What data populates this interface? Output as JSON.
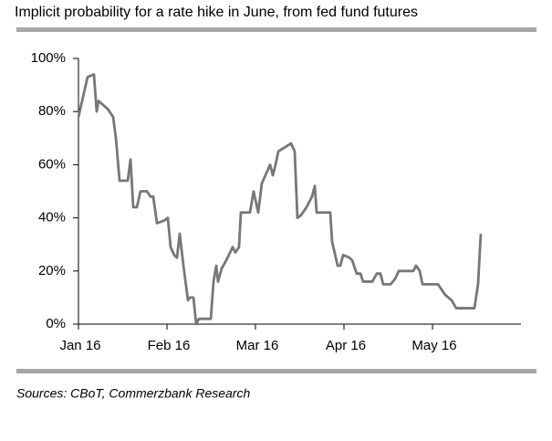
{
  "chart_data": {
    "type": "line",
    "title": "Implicit probability for a rate hike in June, from fed fund futures",
    "source": "Sources: CBoT, Commerzbank Research",
    "color": "#777777",
    "x": [
      0,
      0.103,
      0.175,
      0.206,
      0.227,
      0.33,
      0.392,
      0.423,
      0.464,
      0.557,
      0.588,
      0.619,
      0.66,
      0.701,
      0.773,
      0.814,
      0.845,
      0.887,
      0.969,
      1.01,
      1.041,
      1.082,
      1.113,
      1.144,
      1.186,
      1.237,
      1.258,
      1.299,
      1.33,
      1.361,
      1.495,
      1.526,
      1.557,
      1.577,
      1.619,
      1.67,
      1.742,
      1.773,
      1.814,
      1.835,
      1.938,
      1.979,
      2.031,
      2.072,
      2.165,
      2.196,
      2.227,
      2.258,
      2.402,
      2.443,
      2.474,
      2.515,
      2.577,
      2.639,
      2.67,
      2.691,
      2.845,
      2.866,
      2.928,
      2.959,
      2.99,
      3.062,
      3.093,
      3.144,
      3.186,
      3.216,
      3.32,
      3.371,
      3.412,
      3.443,
      3.526,
      3.577,
      3.619,
      3.753,
      3.784,
      3.814,
      3.856,
      3.887,
      4.062,
      4.103,
      4.144,
      4.216,
      4.268,
      4.474,
      4.515,
      4.546
    ],
    "values": [
      78,
      93,
      94,
      80,
      84,
      81,
      78,
      70,
      54,
      54,
      62,
      44,
      44,
      50,
      50,
      48,
      48,
      38,
      39,
      40,
      29,
      26,
      25,
      34,
      22,
      9,
      10,
      10,
      0,
      2,
      2,
      16,
      22,
      16,
      21,
      24,
      29,
      27,
      29,
      42,
      42,
      50,
      42,
      53,
      60,
      56,
      60,
      65,
      68,
      65,
      40,
      41,
      44,
      48,
      52,
      42,
      42,
      31,
      22,
      22,
      26,
      25,
      24,
      19,
      19,
      16,
      16,
      19,
      19,
      15,
      15,
      17,
      20,
      20,
      20,
      22,
      20,
      15,
      15,
      13,
      11,
      9,
      6,
      6,
      15,
      34
    ],
    "xlim": [
      0,
      5
    ],
    "xticks": [
      {
        "value": 0,
        "label": "Jan 16"
      },
      {
        "value": 1,
        "label": "Feb 16"
      },
      {
        "value": 2,
        "label": "Mar 16"
      },
      {
        "value": 3,
        "label": "Apr 16"
      },
      {
        "value": 4,
        "label": "May 16"
      }
    ],
    "ylim": [
      0,
      100
    ],
    "yticks": [
      {
        "value": 0,
        "label": "0%"
      },
      {
        "value": 20,
        "label": "20%"
      },
      {
        "value": 40,
        "label": "40%"
      },
      {
        "value": 60,
        "label": "60%"
      },
      {
        "value": 80,
        "label": "80%"
      },
      {
        "value": 100,
        "label": "100%"
      }
    ],
    "grid": false
  }
}
